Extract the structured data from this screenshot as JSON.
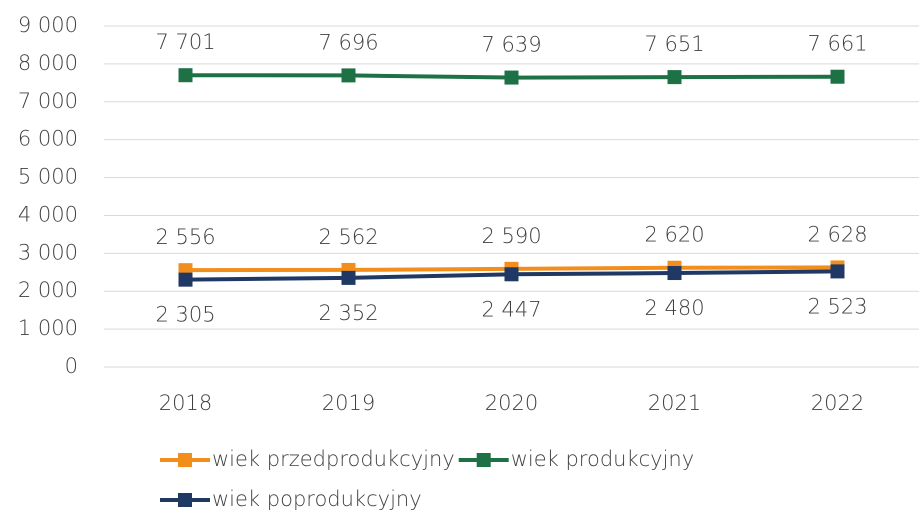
{
  "chart_data": {
    "type": "line",
    "categories": [
      "2018",
      "2019",
      "2020",
      "2021",
      "2022"
    ],
    "series": [
      {
        "name": "wiek przedprodukcyjny",
        "color": "#f28e1c",
        "values": [
          2556,
          2562,
          2590,
          2620,
          2628
        ],
        "value_labels": [
          "2 556",
          "2 562",
          "2 590",
          "2 620",
          "2 628"
        ]
      },
      {
        "name": "wiek produkcyjny",
        "color": "#1e7145",
        "values": [
          7701,
          7696,
          7639,
          7651,
          7661
        ],
        "value_labels": [
          "7 701",
          "7 696",
          "7 639",
          "7 651",
          "7 661"
        ]
      },
      {
        "name": "wiek poprodukcyjny",
        "color": "#1f3864",
        "values": [
          2305,
          2352,
          2447,
          2480,
          2523
        ],
        "value_labels": [
          "2 305",
          "2 352",
          "2 447",
          "2 480",
          "2 523"
        ]
      }
    ],
    "ylim": [
      0,
      9000
    ],
    "yticks": [
      0,
      {
        "value": 1000,
        "label": "1 000"
      },
      {
        "value": 2000,
        "label": "2 000"
      },
      {
        "value": 3000,
        "label": "3 000"
      },
      {
        "value": 4000,
        "label": "4 000"
      },
      {
        "value": 5000,
        "label": "5 000"
      },
      {
        "value": 6000,
        "label": "6 000"
      },
      {
        "value": 7000,
        "label": "7 000"
      },
      {
        "value": 8000,
        "label": "8 000"
      },
      {
        "value": 9000,
        "label": "9 000"
      }
    ],
    "grid": true
  }
}
